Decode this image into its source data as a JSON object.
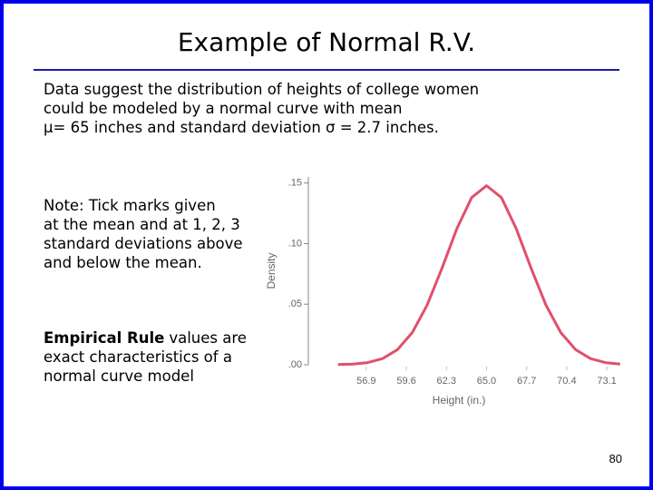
{
  "slide": {
    "title": "Example of Normal R.V.",
    "intro": [
      "Data suggest the distribution of heights of college women",
      "could be modeled by a normal curve with mean",
      "μ= 65 inches and standard deviation σ = 2.7 inches."
    ],
    "note": [
      "Note: Tick marks given",
      "at the mean and at 1, 2, 3",
      "standard deviations above",
      "and below the mean."
    ],
    "empirical": {
      "bold": "Empirical Rule",
      "lines": [
        "values are",
        "exact characteristics of a",
        "normal curve model"
      ]
    },
    "page_number": "80"
  },
  "chart_data": {
    "type": "line",
    "x_label": "Height (in.)",
    "y_label": "Density",
    "x": [
      55,
      56,
      57,
      58,
      59,
      60,
      61,
      62,
      63,
      64,
      65,
      66,
      67,
      68,
      69,
      70,
      71,
      72,
      73,
      74
    ],
    "series": [
      {
        "color": "#e0506a",
        "values": [
          0.0002,
          0.0006,
          0.0018,
          0.0051,
          0.0125,
          0.0266,
          0.0493,
          0.0797,
          0.1123,
          0.138,
          0.1478,
          0.138,
          0.1123,
          0.0797,
          0.0493,
          0.0266,
          0.0125,
          0.0051,
          0.0018,
          0.0006
        ]
      }
    ],
    "xlim": [
      53,
      74.5
    ],
    "ylim": [
      0,
      0.155
    ],
    "xticks": [
      56.9,
      59.6,
      62.3,
      {
        "value": 65,
        "label": "65.0"
      },
      67.7,
      70.4,
      73.1
    ],
    "yticks": [
      {
        "value": 0,
        "label": ".00"
      },
      {
        "value": 0.05,
        "label": ".05"
      },
      {
        "value": 0.1,
        "label": ".10"
      },
      {
        "value": 0.15,
        "label": ".15"
      }
    ]
  }
}
